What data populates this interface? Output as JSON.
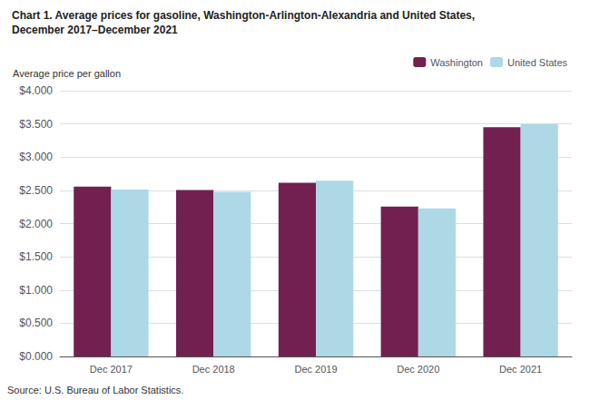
{
  "chart_data": {
    "type": "bar",
    "title": "Chart 1. Average prices for gasoline, Washington-Arlington-Alexandria and United States,",
    "subtitle": "December 2017–December 2021",
    "y_label": "Average price per gallon",
    "annotations": [
      "Source: U.S. Bureau of Labor Statistics."
    ],
    "categories": [
      "Dec 2017",
      "Dec 2018",
      "Dec 2019",
      "Dec 2020",
      "Dec 2021"
    ],
    "series": [
      {
        "name": "Washington",
        "color": "#722050",
        "values": [
          2.558,
          2.506,
          2.614,
          2.255,
          3.452
        ]
      },
      {
        "name": "United States",
        "color": "#add8e6",
        "values": [
          2.513,
          2.479,
          2.646,
          2.23,
          3.497
        ]
      }
    ],
    "ylim": [
      0,
      4.0
    ],
    "yticks": [
      {
        "value": 0.0,
        "label": "$0.000"
      },
      {
        "value": 0.5,
        "label": "$0.500"
      },
      {
        "value": 1.0,
        "label": "$1.000"
      },
      {
        "value": 1.5,
        "label": "$1.500"
      },
      {
        "value": 2.0,
        "label": "$2.000"
      },
      {
        "value": 2.5,
        "label": "$2.500"
      },
      {
        "value": 3.0,
        "label": "$3.000"
      },
      {
        "value": 3.5,
        "label": "$3.500"
      },
      {
        "value": 4.0,
        "label": "$4.000"
      }
    ],
    "grid": true,
    "legend": "top"
  }
}
